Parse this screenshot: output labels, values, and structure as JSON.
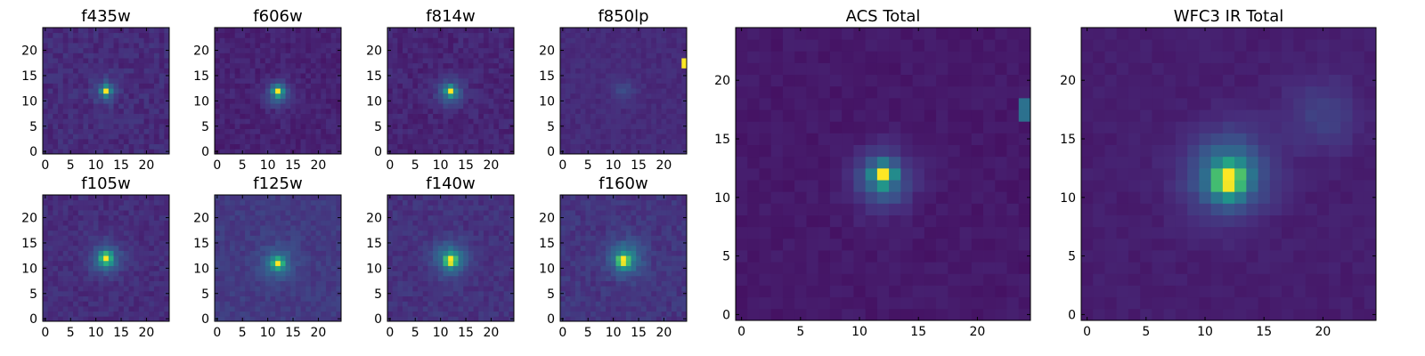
{
  "figure": {
    "colormap": "viridis",
    "colormap_stops": [
      "#440154",
      "#472d7b",
      "#3b528b",
      "#2c728e",
      "#21918c",
      "#28ae80",
      "#5ec962",
      "#addc30",
      "#fde725"
    ]
  },
  "chart_data": [
    {
      "type": "heatmap",
      "id": "f435w",
      "title": "f435w",
      "image_size": 25,
      "xlim": [
        0,
        25
      ],
      "ylim": [
        0,
        25
      ],
      "xticks": [
        0,
        5,
        10,
        15,
        20
      ],
      "yticks": [
        0,
        5,
        10,
        15,
        20
      ],
      "noise_level": 0.26,
      "background": 0.18,
      "sources": [
        {
          "x": 12,
          "y": 12,
          "peak": 1.0,
          "sigma": 0.55
        },
        {
          "x": 12,
          "y": 12,
          "peak": 0.35,
          "sigma": 1.6
        }
      ]
    },
    {
      "type": "heatmap",
      "id": "f606w",
      "title": "f606w",
      "image_size": 25,
      "xlim": [
        0,
        25
      ],
      "ylim": [
        0,
        25
      ],
      "xticks": [
        0,
        5,
        10,
        15,
        20
      ],
      "yticks": [
        0,
        5,
        10,
        15,
        20
      ],
      "noise_level": 0.2,
      "background": 0.14,
      "sources": [
        {
          "x": 12,
          "y": 12,
          "peak": 1.0,
          "sigma": 0.6
        },
        {
          "x": 12,
          "y": 11.5,
          "peak": 0.4,
          "sigma": 1.7
        }
      ]
    },
    {
      "type": "heatmap",
      "id": "f814w",
      "title": "f814w",
      "image_size": 25,
      "xlim": [
        0,
        25
      ],
      "ylim": [
        0,
        25
      ],
      "xticks": [
        0,
        5,
        10,
        15,
        20
      ],
      "yticks": [
        0,
        5,
        10,
        15,
        20
      ],
      "noise_level": 0.24,
      "background": 0.16,
      "sources": [
        {
          "x": 12,
          "y": 12,
          "peak": 1.0,
          "sigma": 0.6
        },
        {
          "x": 12,
          "y": 11.5,
          "peak": 0.4,
          "sigma": 1.8
        }
      ]
    },
    {
      "type": "heatmap",
      "id": "f850lp",
      "title": "f850lp",
      "image_size": 25,
      "xlim": [
        0,
        25
      ],
      "ylim": [
        0,
        25
      ],
      "xticks": [
        0,
        5,
        10,
        15,
        20
      ],
      "yticks": [
        0,
        5,
        10,
        15,
        20
      ],
      "noise_level": 0.1,
      "background": 0.12,
      "sources": [
        {
          "x": 12,
          "y": 12,
          "peak": 0.1,
          "sigma": 1.6
        }
      ],
      "hot_pixels": [
        {
          "x": 24,
          "y": 17,
          "value": 1.0
        },
        {
          "x": 24,
          "y": 18,
          "value": 1.0
        }
      ]
    },
    {
      "type": "heatmap",
      "id": "acs_total",
      "title": "ACS Total",
      "image_size": 25,
      "xlim": [
        0,
        25
      ],
      "ylim": [
        0,
        25
      ],
      "xticks": [
        0,
        5,
        10,
        15,
        20
      ],
      "yticks": [
        0,
        5,
        10,
        15,
        20
      ],
      "noise_level": 0.12,
      "background": 0.1,
      "sources": [
        {
          "x": 12,
          "y": 12,
          "peak": 1.0,
          "sigma": 0.6
        },
        {
          "x": 12,
          "y": 11.5,
          "peak": 0.42,
          "sigma": 1.7
        }
      ],
      "hot_pixels": [
        {
          "x": 24,
          "y": 17,
          "value": 0.55
        },
        {
          "x": 24,
          "y": 18,
          "value": 0.55
        }
      ]
    },
    {
      "type": "heatmap",
      "id": "f105w",
      "title": "f105w",
      "image_size": 25,
      "xlim": [
        0,
        25
      ],
      "ylim": [
        0,
        25
      ],
      "xticks": [
        0,
        5,
        10,
        15,
        20
      ],
      "yticks": [
        0,
        5,
        10,
        15,
        20
      ],
      "noise_level": 0.24,
      "background": 0.2,
      "sources": [
        {
          "x": 12,
          "y": 12,
          "peak": 1.0,
          "sigma": 0.8
        },
        {
          "x": 12,
          "y": 12,
          "peak": 0.4,
          "sigma": 2.2
        }
      ]
    },
    {
      "type": "heatmap",
      "id": "f125w",
      "title": "f125w",
      "image_size": 25,
      "xlim": [
        0,
        25
      ],
      "ylim": [
        0,
        25
      ],
      "xticks": [
        0,
        5,
        10,
        15,
        20
      ],
      "yticks": [
        0,
        5,
        10,
        15,
        20
      ],
      "noise_level": 0.26,
      "background": 0.3,
      "sources": [
        {
          "x": 12,
          "y": 11,
          "peak": 1.0,
          "sigma": 0.75
        },
        {
          "x": 12,
          "y": 11,
          "peak": 0.4,
          "sigma": 2.2
        }
      ]
    },
    {
      "type": "heatmap",
      "id": "f140w",
      "title": "f140w",
      "image_size": 25,
      "xlim": [
        0,
        25
      ],
      "ylim": [
        0,
        25
      ],
      "xticks": [
        0,
        5,
        10,
        15,
        20
      ],
      "yticks": [
        0,
        5,
        10,
        15,
        20
      ],
      "noise_level": 0.24,
      "background": 0.22,
      "sources": [
        {
          "x": 12,
          "y": 11.5,
          "peak": 1.0,
          "sigma": 0.8
        },
        {
          "x": 12,
          "y": 12,
          "peak": 0.45,
          "sigma": 2.3
        }
      ]
    },
    {
      "type": "heatmap",
      "id": "f160w",
      "title": "f160w",
      "image_size": 25,
      "xlim": [
        0,
        25
      ],
      "ylim": [
        0,
        25
      ],
      "xticks": [
        0,
        5,
        10,
        15,
        20
      ],
      "yticks": [
        0,
        5,
        10,
        15,
        20
      ],
      "noise_level": 0.24,
      "background": 0.22,
      "sources": [
        {
          "x": 12,
          "y": 11.5,
          "peak": 1.0,
          "sigma": 0.8
        },
        {
          "x": 12.5,
          "y": 12,
          "peak": 0.45,
          "sigma": 2.3
        }
      ]
    },
    {
      "type": "heatmap",
      "id": "wfc3_ir_total",
      "title": "WFC3 IR Total",
      "image_size": 25,
      "xlim": [
        0,
        25
      ],
      "ylim": [
        0,
        25
      ],
      "xticks": [
        0,
        5,
        10,
        15,
        20
      ],
      "yticks": [
        0,
        5,
        10,
        15,
        20
      ],
      "noise_level": 0.1,
      "background": 0.12,
      "sources": [
        {
          "x": 12,
          "y": 11.5,
          "peak": 1.0,
          "sigma": 0.9
        },
        {
          "x": 12,
          "y": 12,
          "peak": 0.5,
          "sigma": 2.4
        },
        {
          "x": 20,
          "y": 17,
          "peak": 0.16,
          "sigma": 2.2
        }
      ]
    }
  ]
}
